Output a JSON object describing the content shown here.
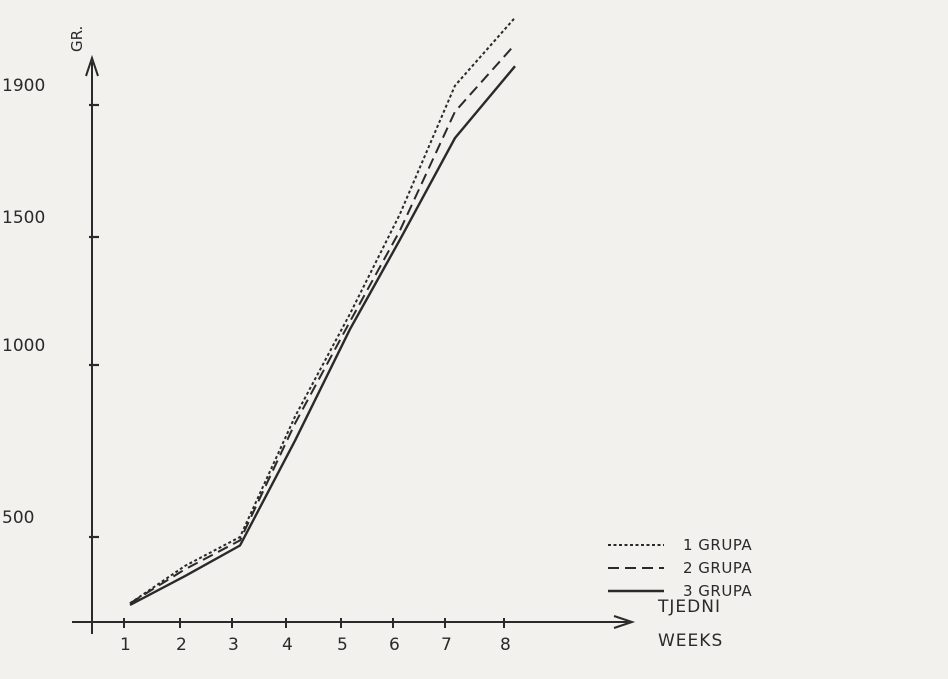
{
  "chart_data": {
    "type": "line",
    "y_unit_label": "GR.",
    "x_axis_label_lines": [
      "TJEDNI",
      "WEEKS"
    ],
    "x": [
      1,
      2,
      3,
      4,
      5,
      6,
      7,
      8
    ],
    "x_tick_labels": [
      "1",
      "2",
      "3",
      "4",
      "5",
      "6",
      "7",
      "8"
    ],
    "y_ticks": [
      500,
      1000,
      1500,
      1900
    ],
    "y_tick_labels": [
      "500",
      "1000",
      "1500",
      "1900"
    ],
    "xlim": [
      0,
      9
    ],
    "ylim": [
      0,
      2000
    ],
    "grid": false,
    "legend_position": "lower-right",
    "series": [
      {
        "name": "1 GRUPA",
        "style": "dotted",
        "values": [
          110,
          330,
          500,
          850,
          1200,
          1570,
          1980,
          2260
        ]
      },
      {
        "name": "2 GRUPA",
        "style": "dashed",
        "values": [
          110,
          310,
          480,
          830,
          1170,
          1520,
          1880,
          2150
        ]
      },
      {
        "name": "3 GRUPA",
        "style": "solid",
        "values": [
          100,
          270,
          450,
          780,
          1140,
          1490,
          1800,
          2060
        ]
      }
    ]
  }
}
